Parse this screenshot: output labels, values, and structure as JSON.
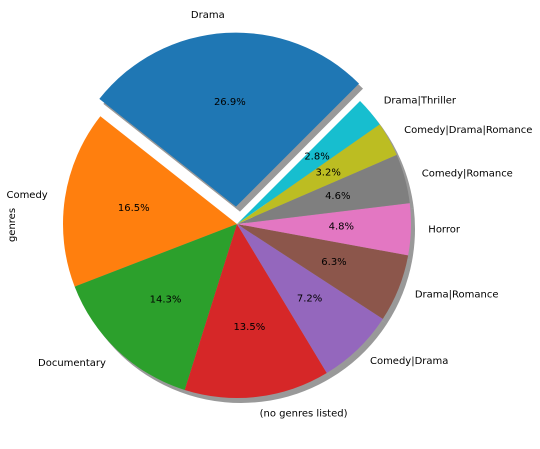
{
  "chart_data": {
    "type": "pie",
    "ylabel": "genres",
    "exploded": "Drama",
    "shadow": true,
    "start_angle_deg": 45,
    "direction": "counterclockwise",
    "slices": [
      {
        "label": "Drama",
        "value": 26.9,
        "pct_label": "26.9%",
        "color": "#1f77b4"
      },
      {
        "label": "Comedy",
        "value": 16.5,
        "pct_label": "16.5%",
        "color": "#ff7f0e"
      },
      {
        "label": "Documentary",
        "value": 14.3,
        "pct_label": "14.3%",
        "color": "#2ca02c"
      },
      {
        "label": "(no genres listed)",
        "value": 13.5,
        "pct_label": "13.5%",
        "color": "#d62728"
      },
      {
        "label": "Comedy|Drama",
        "value": 7.2,
        "pct_label": "7.2%",
        "color": "#9467bd"
      },
      {
        "label": "Drama|Romance",
        "value": 6.3,
        "pct_label": "6.3%",
        "color": "#8c564b"
      },
      {
        "label": "Horror",
        "value": 4.8,
        "pct_label": "4.8%",
        "color": "#e377c2"
      },
      {
        "label": "Comedy|Romance",
        "value": 4.6,
        "pct_label": "4.6%",
        "color": "#7f7f7f"
      },
      {
        "label": "Comedy|Drama|Romance",
        "value": 3.2,
        "pct_label": "3.2%",
        "color": "#bcbd22"
      },
      {
        "label": "Drama|Thriller",
        "value": 2.8,
        "pct_label": "2.8%",
        "color": "#17becf"
      }
    ]
  }
}
